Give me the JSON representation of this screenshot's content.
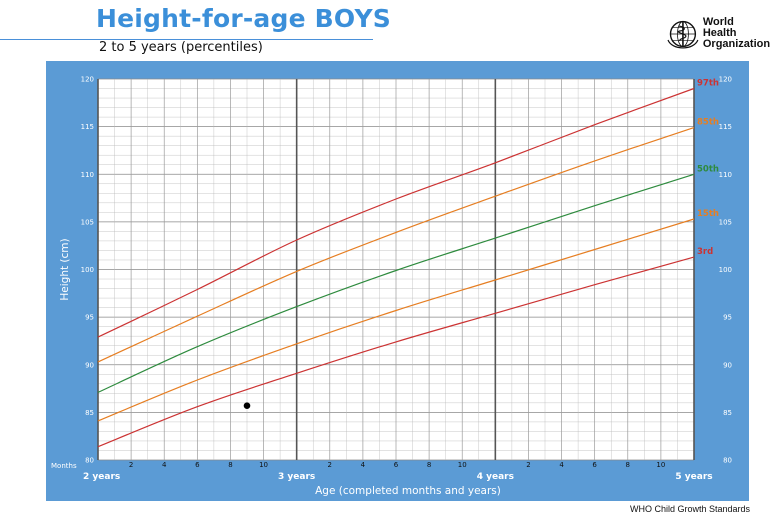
{
  "header": {
    "title": "Height-for-age BOYS",
    "subtitle": "2 to 5 years (percentiles)",
    "org_line1": "World Health",
    "org_line2": "Organization",
    "logo_icon": "who-emblem-icon"
  },
  "footer": {
    "text": "WHO Child Growth Standards"
  },
  "colors": {
    "panel": "#5b9bd5",
    "grid_bg": "#ffffff",
    "grid_minor": "#b9b9b9",
    "grid_major": "#555555",
    "p97": "#cc3333",
    "p85": "#e67e22",
    "p50": "#2e8b3e",
    "p15": "#e67e22",
    "p3": "#cc3333"
  },
  "chart_data": {
    "type": "line",
    "title": "Height-for-age BOYS",
    "subtitle": "2 to 5 years (percentiles)",
    "xlabel": "Age (completed months and years)",
    "ylabel": "Height (cm)",
    "x_unit_label": "Months",
    "xlim": [
      24,
      60
    ],
    "ylim": [
      80,
      120
    ],
    "grid": true,
    "year_labels": [
      {
        "month": 24,
        "label": "2 years"
      },
      {
        "month": 36,
        "label": "3 years"
      },
      {
        "month": 48,
        "label": "4 years"
      },
      {
        "month": 60,
        "label": "5 years"
      }
    ],
    "month_tick_labels": [
      "2",
      "4",
      "6",
      "8",
      "10",
      "2",
      "4",
      "6",
      "8",
      "10",
      "2",
      "4",
      "6",
      "8",
      "10"
    ],
    "y_tick_labels": [
      "80",
      "85",
      "90",
      "95",
      "100",
      "105",
      "110",
      "115",
      "120"
    ],
    "y_ticks": [
      80,
      85,
      90,
      95,
      100,
      105,
      110,
      115,
      120
    ],
    "legend_placement": "right end of curves",
    "x": [
      24,
      30,
      36,
      42,
      48,
      54,
      60
    ],
    "series": [
      {
        "name": "97th",
        "values": [
          92.9,
          97.9,
          103.1,
          107.4,
          111.2,
          115.2,
          119.0
        ]
      },
      {
        "name": "85th",
        "values": [
          90.3,
          95.1,
          99.8,
          103.9,
          107.7,
          111.4,
          114.9
        ]
      },
      {
        "name": "50th",
        "values": [
          87.1,
          91.9,
          96.1,
          99.9,
          103.3,
          106.7,
          110.0
        ]
      },
      {
        "name": "15th",
        "values": [
          84.1,
          88.4,
          92.2,
          95.7,
          98.9,
          102.1,
          105.3
        ]
      },
      {
        "name": "3rd",
        "values": [
          81.4,
          85.6,
          89.1,
          92.4,
          95.4,
          98.4,
          101.3
        ]
      }
    ],
    "points": [
      {
        "x": 33,
        "y": 85.7
      }
    ]
  }
}
